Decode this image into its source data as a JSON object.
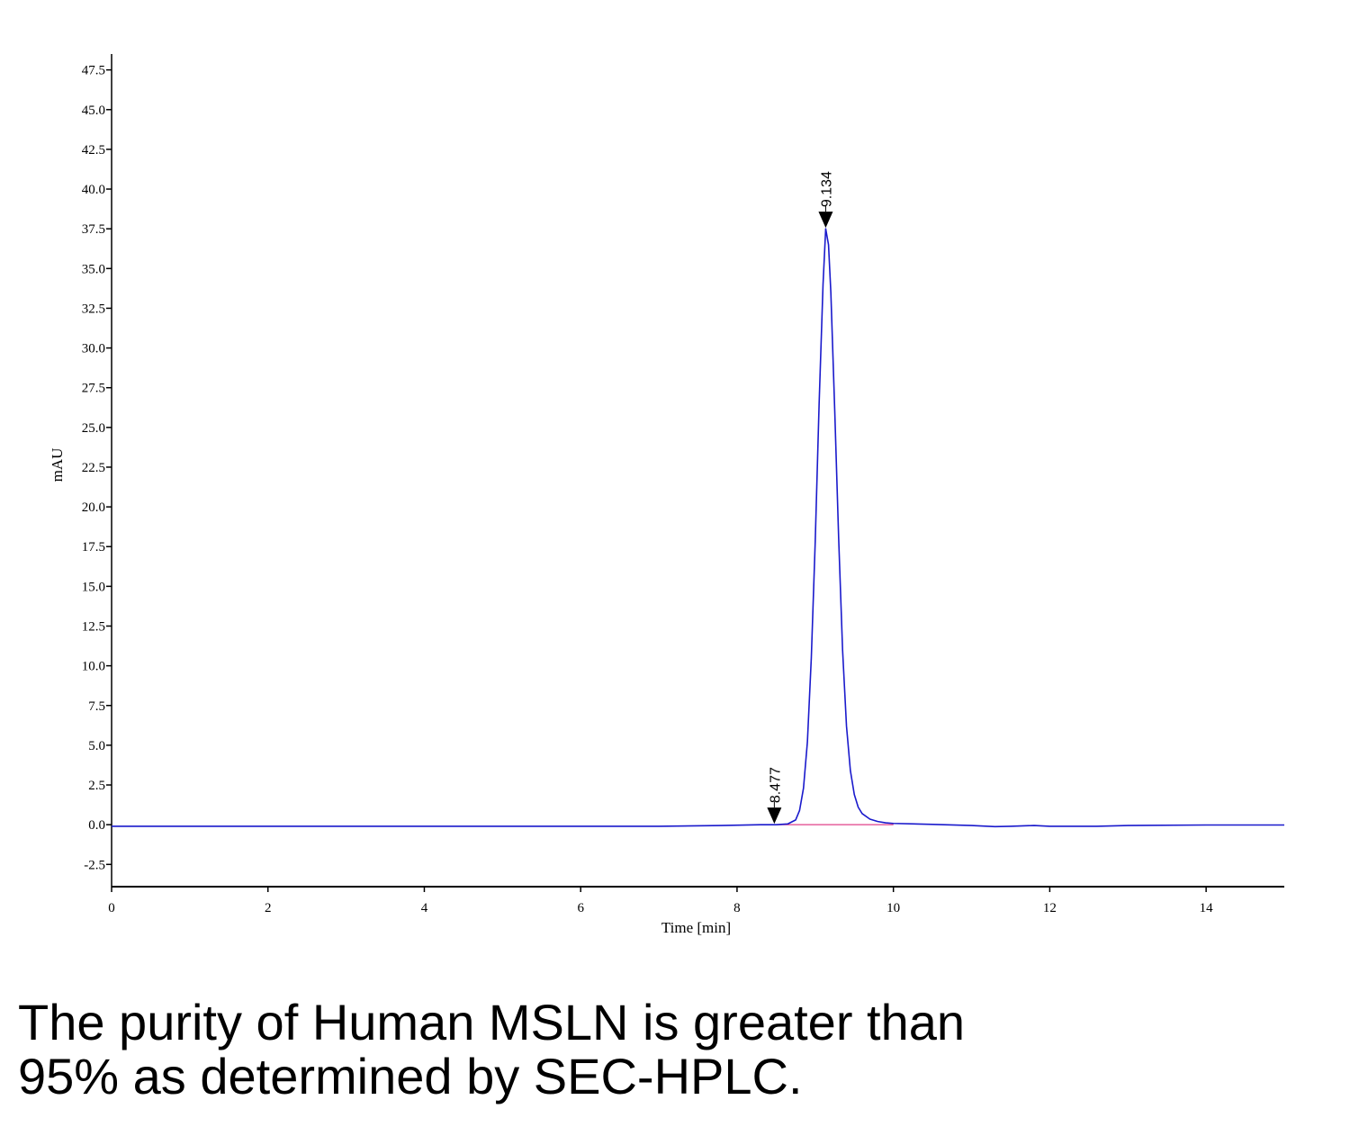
{
  "chart_data": {
    "type": "line",
    "title": "",
    "xlabel": "Time [min]",
    "ylabel": "mAU",
    "xlim": [
      0,
      15
    ],
    "ylim": [
      -3.9,
      48.5
    ],
    "x_ticks": [
      0,
      2,
      4,
      6,
      8,
      10,
      12,
      14
    ],
    "x_tick_labels": [
      "0",
      "2",
      "4",
      "6",
      "8",
      "10",
      "12",
      "14"
    ],
    "y_ticks": [
      -2.5,
      0,
      2.5,
      5,
      7.5,
      10,
      12.5,
      15,
      17.5,
      20,
      22.5,
      25,
      27.5,
      30,
      32.5,
      35,
      37.5,
      40,
      42.5,
      45,
      47.5
    ],
    "y_tick_labels": [
      "-2.5",
      "0.0",
      "2.5",
      "5.0",
      "7.5",
      "10.0",
      "12.5",
      "15.0",
      "17.5",
      "20.0",
      "22.5",
      "25.0",
      "27.5",
      "30.0",
      "32.5",
      "35.0",
      "37.5",
      "40.0",
      "42.5",
      "45.0",
      "47.5"
    ],
    "grid": false,
    "series": [
      {
        "color": "#1a1acc",
        "x": [
          0,
          2,
          4,
          6,
          7,
          7.8,
          8.3,
          8.5,
          8.65,
          8.75,
          8.8,
          8.85,
          8.9,
          8.95,
          9.0,
          9.05,
          9.1,
          9.134,
          9.17,
          9.2,
          9.25,
          9.3,
          9.35,
          9.4,
          9.45,
          9.5,
          9.55,
          9.6,
          9.7,
          9.8,
          9.9,
          10.0,
          10.5,
          11.0,
          11.3,
          11.5,
          11.8,
          12.0,
          12.6,
          13.0,
          14.0,
          15.0
        ],
        "y": [
          -0.1,
          -0.1,
          -0.1,
          -0.1,
          -0.1,
          -0.05,
          0,
          0,
          0.05,
          0.3,
          0.9,
          2.3,
          5.2,
          10.5,
          17.8,
          26.5,
          34.0,
          37.5,
          36.5,
          33.5,
          26.0,
          18.0,
          11.0,
          6.2,
          3.4,
          1.9,
          1.1,
          0.7,
          0.35,
          0.2,
          0.12,
          0.08,
          0.02,
          -0.05,
          -0.12,
          -0.1,
          -0.05,
          -0.1,
          -0.1,
          -0.05,
          -0.02,
          -0.02
        ]
      },
      {
        "color": "#e0408a",
        "x": [
          8.477,
          10.0
        ],
        "y": [
          0,
          0
        ]
      }
    ],
    "annotations": [
      {
        "text": "9.134",
        "x": 9.134,
        "y": 37.5
      },
      {
        "text": "8.477",
        "x": 8.477,
        "y": 0
      }
    ]
  },
  "caption": {
    "line1": "The purity of Human MSLN is greater than",
    "line2": "95% as determined by SEC-HPLC."
  }
}
